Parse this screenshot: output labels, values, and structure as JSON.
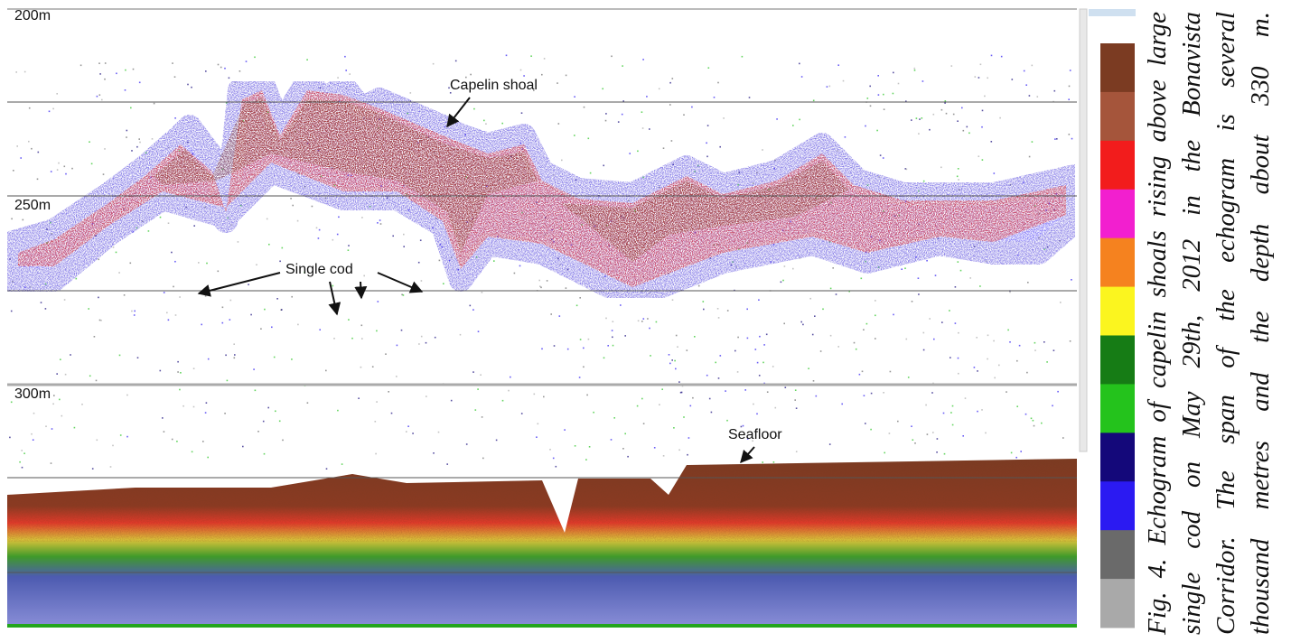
{
  "figure": {
    "depth_labels": [
      "200m",
      "250m",
      "300m"
    ],
    "annotations": {
      "capelin": "Capelin shoal",
      "cod": "Single cod",
      "seafloor": "Seafloor"
    },
    "colorbar": [
      "#7b3b22",
      "#a5553b",
      "#f21c1c",
      "#f21fcf",
      "#f5821f",
      "#fbf51f",
      "#167c15",
      "#24c31c",
      "#14087a",
      "#2b1af2",
      "#6a6a6a",
      "#a9a9a9"
    ],
    "caption": [
      "Fig. 4. Echogram of capelin shoals rising above large",
      "single cod on May 29th, 2012 in the Bonavista",
      "Corridor. The span of the echogram is several",
      "thousand metres and the depth about 330 m."
    ]
  }
}
